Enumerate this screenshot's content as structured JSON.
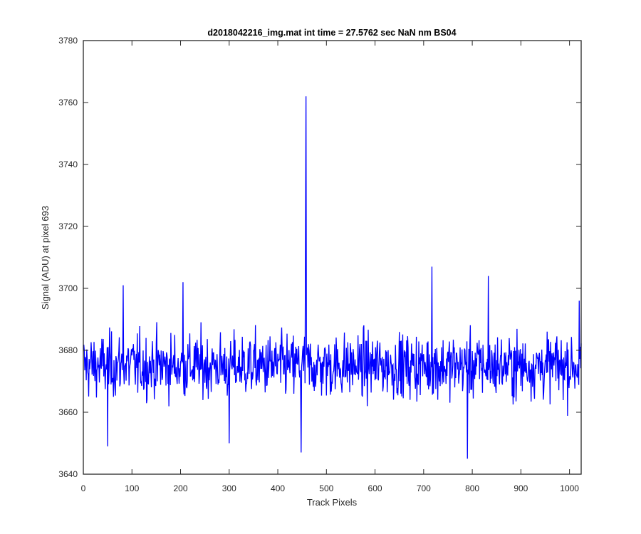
{
  "chart_data": {
    "type": "line",
    "title": "d2018042216_img.mat int time = 27.5762 sec  NaN nm BS04",
    "xlabel": "Track Pixels",
    "ylabel": "Signal (ADU) at pixel 693",
    "xlim": [
      0,
      1024
    ],
    "ylim": [
      3640,
      3780
    ],
    "xticks": [
      "0",
      "100",
      "200",
      "300",
      "400",
      "500",
      "600",
      "700",
      "800",
      "900",
      "1000"
    ],
    "yticks": [
      "3640",
      "3660",
      "3680",
      "3700",
      "3720",
      "3740",
      "3760",
      "3780"
    ],
    "grid": false,
    "line_color": "#0000ff",
    "series": [
      {
        "x_start": 1,
        "x_step": 1,
        "baseline": 3675,
        "noise_amplitude": 6,
        "notable_points": [
          {
            "x": 50,
            "y": 3649
          },
          {
            "x": 82,
            "y": 3701
          },
          {
            "x": 205,
            "y": 3702
          },
          {
            "x": 300,
            "y": 3650
          },
          {
            "x": 448,
            "y": 3647
          },
          {
            "x": 457,
            "y": 3718
          },
          {
            "x": 458,
            "y": 3762
          },
          {
            "x": 717,
            "y": 3707
          },
          {
            "x": 790,
            "y": 3645
          },
          {
            "x": 833,
            "y": 3704
          },
          {
            "x": 1020,
            "y": 3696
          }
        ]
      }
    ]
  }
}
